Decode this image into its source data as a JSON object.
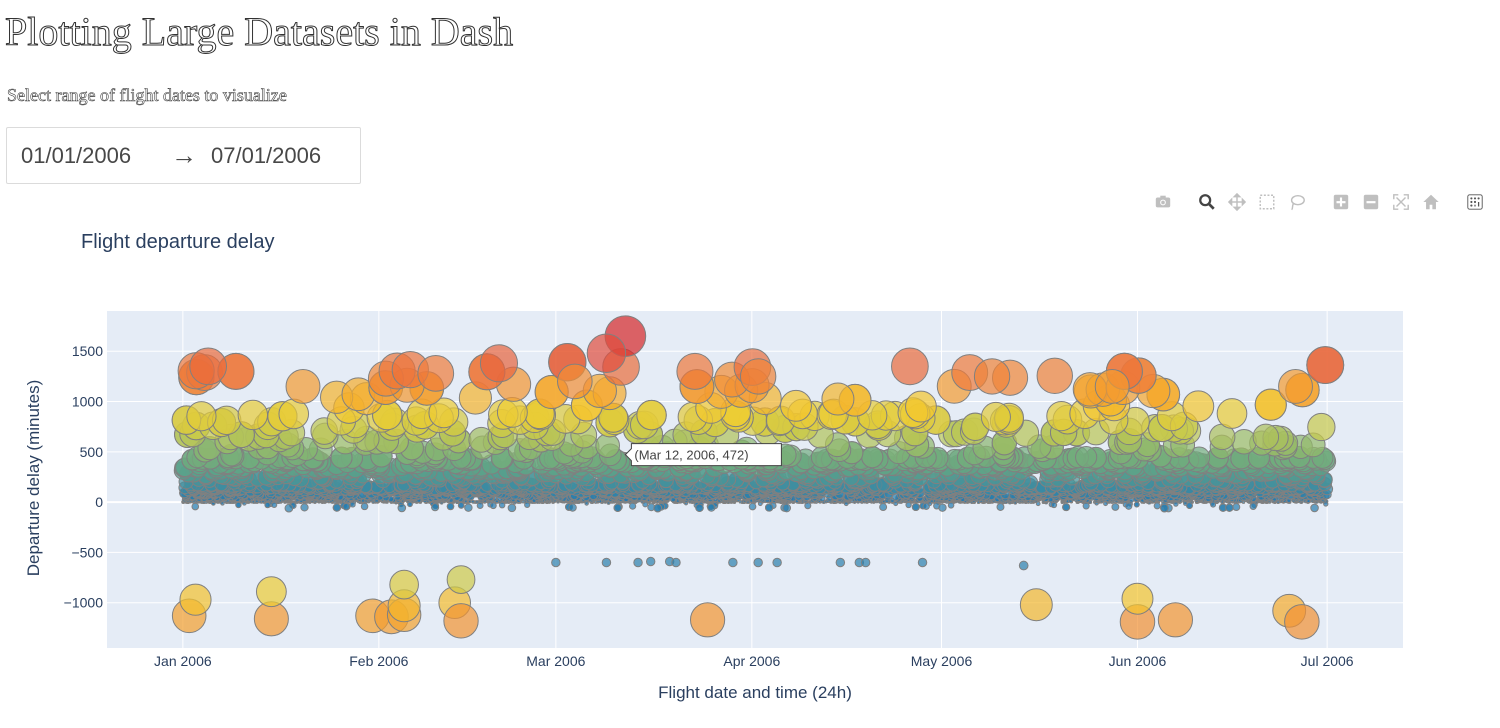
{
  "header": {
    "title": "Plotting Large Datasets in Dash",
    "subtitle": "Select range of flight dates to visualize"
  },
  "date_picker": {
    "start_date": "01/01/2006",
    "end_date": "07/01/2006",
    "arrow": "→"
  },
  "modebar": [
    {
      "name": "camera-icon",
      "label": "Download plot as a png"
    },
    {
      "name": "zoom-icon",
      "label": "Zoom",
      "active": true
    },
    {
      "name": "pan-icon",
      "label": "Pan"
    },
    {
      "name": "box-select-icon",
      "label": "Box Select"
    },
    {
      "name": "lasso-select-icon",
      "label": "Lasso Select"
    },
    {
      "name": "zoom-in-icon",
      "label": "Zoom in"
    },
    {
      "name": "zoom-out-icon",
      "label": "Zoom out"
    },
    {
      "name": "autoscale-icon",
      "label": "Autoscale"
    },
    {
      "name": "reset-axes-icon",
      "label": "Reset axes"
    },
    {
      "name": "plotly-logo-icon",
      "label": "Produced with Plotly"
    }
  ],
  "colors": {
    "plot_bg": "#e5ecf6",
    "grid": "#ffffff",
    "axis_text": "#2a3f5f",
    "marker_outline": "#808080",
    "colorscale": [
      "#1f77b4",
      "#3f8ea0",
      "#5fa487",
      "#8eb86e",
      "#c5c94e",
      "#f3cd2f",
      "#f5a72c",
      "#ef7b3a",
      "#e0503f",
      "#d62728"
    ]
  },
  "chart_data": {
    "type": "scatter",
    "title": "Flight departure delay",
    "xlabel": "Flight date and time (24h)",
    "ylabel": "Departure delay (minutes)",
    "x_tick_labels": [
      "Jan 2006",
      "Feb 2006",
      "Mar 2006",
      "Apr 2006",
      "May 2006",
      "Jun 2006",
      "Jul 2006"
    ],
    "x_tick_dates": [
      "2006-01-01",
      "2006-02-01",
      "2006-03-01",
      "2006-04-01",
      "2006-05-01",
      "2006-06-01",
      "2006-07-01"
    ],
    "xlim": [
      "2005-12-20",
      "2006-07-13"
    ],
    "y_ticks": [
      -1000,
      -500,
      0,
      500,
      1000,
      1500
    ],
    "y_tick_labels": [
      "−1000",
      "−500",
      "0",
      "500",
      "1000",
      "1500"
    ],
    "ylim": [
      -1450,
      1900
    ],
    "grid": true,
    "marker_size_and_color": "departure delay (abs)",
    "hover_label": "(Mar 12, 2006, 472)",
    "hover_point": {
      "x": "2006-03-12",
      "y": 472
    },
    "highlighted_points": [
      {
        "x": "2006-03-12",
        "y": 1650
      },
      {
        "x": "2006-03-09",
        "y": 1480
      },
      {
        "x": "2006-01-05",
        "y": 1350
      },
      {
        "x": "2006-04-26",
        "y": 1350
      },
      {
        "x": "2006-03-04",
        "y": 1200
      },
      {
        "x": "2006-05-09",
        "y": 1250
      },
      {
        "x": "2006-06-26",
        "y": 1150
      },
      {
        "x": "2006-01-20",
        "y": 1150
      },
      {
        "x": "2006-02-10",
        "y": 1280
      },
      {
        "x": "2006-02-20",
        "y": 1380
      },
      {
        "x": "2006-03-23",
        "y": 1300
      },
      {
        "x": "2006-04-02",
        "y": 1250
      },
      {
        "x": "2006-05-28",
        "y": 1150
      }
    ],
    "negative_cluster_points": [
      {
        "x": "2006-01-02",
        "y": -1130
      },
      {
        "x": "2006-01-03",
        "y": -970
      },
      {
        "x": "2006-01-15",
        "y": -1160
      },
      {
        "x": "2006-01-15",
        "y": -890
      },
      {
        "x": "2006-01-31",
        "y": -1130
      },
      {
        "x": "2006-02-03",
        "y": -1140
      },
      {
        "x": "2006-02-05",
        "y": -1120
      },
      {
        "x": "2006-02-05",
        "y": -1030
      },
      {
        "x": "2006-02-05",
        "y": -820
      },
      {
        "x": "2006-02-13",
        "y": -1000
      },
      {
        "x": "2006-02-14",
        "y": -1180
      },
      {
        "x": "2006-02-14",
        "y": -770
      },
      {
        "x": "2006-03-25",
        "y": -1170
      },
      {
        "x": "2006-05-16",
        "y": -1020
      },
      {
        "x": "2006-06-01",
        "y": -1190
      },
      {
        "x": "2006-06-01",
        "y": -960
      },
      {
        "x": "2006-06-07",
        "y": -1170
      },
      {
        "x": "2006-06-25",
        "y": -1080
      },
      {
        "x": "2006-06-27",
        "y": -1190
      }
    ],
    "minus600_points": [
      {
        "x": "2006-03-01",
        "y": -600
      },
      {
        "x": "2006-03-09",
        "y": -600
      },
      {
        "x": "2006-03-14",
        "y": -600
      },
      {
        "x": "2006-03-16",
        "y": -590
      },
      {
        "x": "2006-03-19",
        "y": -590
      },
      {
        "x": "2006-03-20",
        "y": -600
      },
      {
        "x": "2006-03-29",
        "y": -600
      },
      {
        "x": "2006-04-02",
        "y": -600
      },
      {
        "x": "2006-04-05",
        "y": -600
      },
      {
        "x": "2006-04-15",
        "y": -600
      },
      {
        "x": "2006-04-18",
        "y": -600
      },
      {
        "x": "2006-04-19",
        "y": -600
      },
      {
        "x": "2006-04-28",
        "y": -600
      },
      {
        "x": "2006-05-14",
        "y": -630
      }
    ],
    "bulk_distribution": {
      "x_start": "2006-01-01",
      "x_end": "2006-06-30",
      "y_typical_range": [
        0,
        450
      ],
      "y_tail_max": 1400
    }
  }
}
